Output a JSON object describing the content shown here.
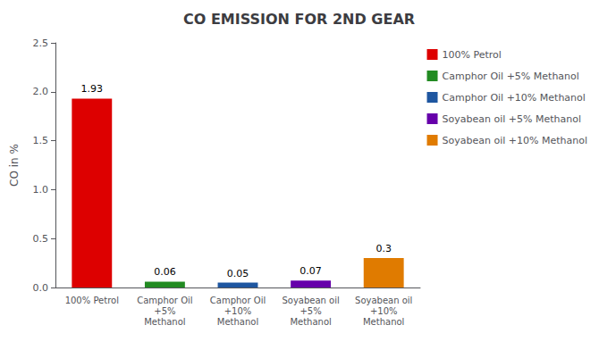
{
  "chart_data": {
    "type": "bar",
    "title": "CO EMISSION FOR 2ND GEAR",
    "ylabel": "CO in %",
    "categories": [
      "100% Petrol",
      "Camphor Oil\n+5%\nMethanol",
      "Camphor Oil\n+10%\nMethanol",
      "Soyabean oil\n+5%\nMethanol",
      "Soyabean oil\n+10%\nMethanol"
    ],
    "values": [
      1.93,
      0.06,
      0.05,
      0.07,
      0.3
    ],
    "colors": [
      "#dd0000",
      "#228B22",
      "#1E56A0",
      "#6600aa",
      "#E07B00"
    ],
    "legend_labels": [
      "100% Petrol",
      "Camphor Oil +5% Methanol",
      "Camphor Oil +10% Methanol",
      "Soyabean oil +5% Methanol",
      "Soyabean oil +10% Methanol"
    ],
    "legend": "right",
    "ylim": [
      0,
      2.5
    ],
    "yticks": [
      {
        "value": 0,
        "label": "0.0"
      },
      {
        "value": 0.5,
        "label": "0.5"
      },
      {
        "value": 1.0,
        "label": "1.0"
      },
      {
        "value": 1.5,
        "label": "1.5"
      },
      {
        "value": 2.0,
        "label": "2.0"
      },
      {
        "value": 2.5,
        "label": "2.5"
      }
    ],
    "grid": false,
    "data_labels": true
  }
}
